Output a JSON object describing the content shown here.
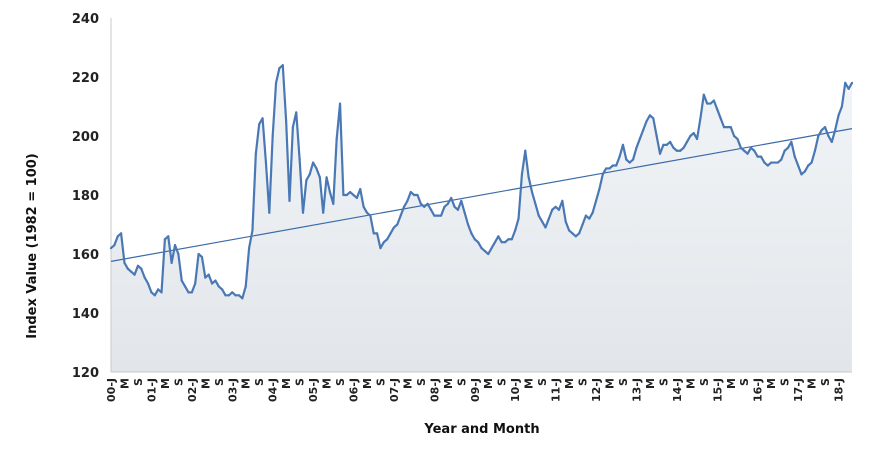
{
  "chart_data": {
    "type": "area",
    "title": "",
    "xlabel": "Year and Month",
    "ylabel": "Index Value (1982 = 100)",
    "ylim": [
      120,
      240
    ],
    "yticks": [
      120,
      140,
      160,
      180,
      200,
      220,
      240
    ],
    "grid": false,
    "x_start": "2000-01",
    "x_ticks": [
      "00-J",
      "M",
      "S",
      "01-J",
      "M",
      "S",
      "02-J",
      "M",
      "S",
      "03-J",
      "M",
      "S",
      "04-J",
      "M",
      "S",
      "05-J",
      "M",
      "S",
      "06-J",
      "M",
      "S",
      "07-J",
      "M",
      "S",
      "08-J",
      "M",
      "S",
      "09-J",
      "M",
      "S",
      "10-J",
      "M",
      "S",
      "11-J",
      "M",
      "S",
      "12-J",
      "M",
      "S",
      "13-J",
      "M",
      "S",
      "14-J",
      "M",
      "S",
      "15-J",
      "M",
      "S",
      "16-J",
      "M",
      "S",
      "17-J",
      "M",
      "S",
      "18-J"
    ],
    "series": [
      {
        "values": [
          162,
          163,
          166,
          167,
          157,
          155,
          154,
          153,
          156,
          155,
          152,
          150,
          147,
          146,
          148,
          147,
          165,
          166,
          157,
          163,
          160,
          151,
          149,
          147,
          147,
          150,
          160,
          159,
          152,
          153,
          150,
          151,
          149,
          148,
          146,
          146,
          147,
          146,
          146,
          145,
          149,
          162,
          168,
          194,
          204,
          206,
          191,
          174,
          200,
          218,
          223,
          224,
          205,
          178,
          203,
          208,
          192,
          174,
          185,
          187,
          191,
          189,
          186,
          174,
          186,
          181,
          177,
          199,
          211,
          180,
          180,
          181,
          180,
          179,
          182,
          176,
          174,
          173,
          167,
          167,
          162,
          164,
          165,
          167,
          169,
          170,
          173,
          176,
          178,
          181,
          180,
          180,
          177,
          176,
          177,
          175,
          173,
          173,
          173,
          176,
          177,
          179,
          176,
          175,
          178,
          174,
          170,
          167,
          165,
          164,
          162,
          161,
          160,
          162,
          164,
          166,
          164,
          164,
          165,
          165,
          168,
          172,
          187,
          195,
          186,
          181,
          177,
          173,
          171,
          169,
          172,
          175,
          176,
          175,
          178,
          171,
          168,
          167,
          166,
          167,
          170,
          173,
          172,
          174,
          178,
          182,
          187,
          189,
          189,
          190,
          190,
          193,
          197,
          192,
          191,
          192,
          196,
          199,
          202,
          205,
          207,
          206,
          200,
          194,
          197,
          197,
          198,
          196,
          195,
          195,
          196,
          198,
          200,
          201,
          199,
          206,
          214,
          211,
          211,
          212,
          209,
          206,
          203,
          203,
          203,
          200,
          199,
          196,
          195,
          194,
          196,
          195,
          193,
          193,
          191,
          190,
          191,
          191,
          191,
          192,
          195,
          196,
          198,
          193,
          190,
          187,
          188,
          190,
          191,
          195,
          200,
          202,
          203,
          200,
          198,
          202,
          207,
          210,
          218,
          216,
          218
        ]
      }
    ],
    "trendline": {
      "start": 157.5,
      "end": 202.5
    }
  }
}
